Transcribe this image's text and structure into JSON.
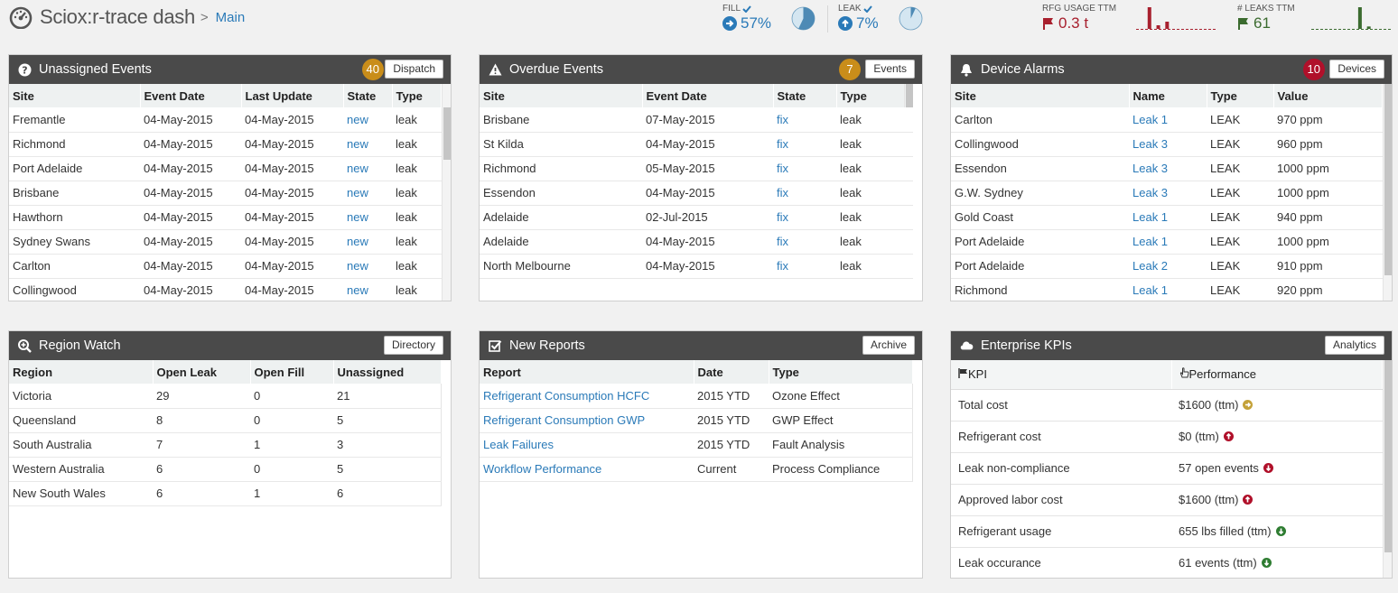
{
  "app": {
    "title": "Sciox:r-trace dash",
    "separator": ">",
    "breadcrumb": "Main"
  },
  "stats": {
    "fill": {
      "label": "FILL",
      "value": "57%",
      "fraction": 0.57
    },
    "leak": {
      "label": "LEAK",
      "value": "7%",
      "fraction": 0.07
    },
    "rfg_usage": {
      "label": "RFG USAGE TTM",
      "value": "0.3 t",
      "spark": [
        0,
        6,
        1,
        2,
        0,
        0,
        0,
        0,
        0
      ]
    },
    "leaks_ttm": {
      "label": "# LEAKS TTM",
      "value": "61",
      "spark": [
        0,
        0,
        0,
        0,
        0,
        9,
        1,
        0,
        0
      ]
    }
  },
  "colors": {
    "header": "#4a4a4a",
    "accent": "#2a7ab8",
    "gold": "#c98d1a",
    "alarm": "#b0102a",
    "ok": "#2f7d32"
  },
  "unassigned": {
    "title": "Unassigned Events",
    "badge": "40",
    "button": "Dispatch",
    "columns": [
      "Site",
      "Event Date",
      "Last Update",
      "State",
      "Type"
    ],
    "rows": [
      [
        "Fremantle",
        "04-May-2015",
        "04-May-2015",
        "new",
        "leak"
      ],
      [
        "Richmond",
        "04-May-2015",
        "04-May-2015",
        "new",
        "leak"
      ],
      [
        "Port Adelaide",
        "04-May-2015",
        "04-May-2015",
        "new",
        "leak"
      ],
      [
        "Brisbane",
        "04-May-2015",
        "04-May-2015",
        "new",
        "leak"
      ],
      [
        "Hawthorn",
        "04-May-2015",
        "04-May-2015",
        "new",
        "leak"
      ],
      [
        "Sydney Swans",
        "04-May-2015",
        "04-May-2015",
        "new",
        "leak"
      ],
      [
        "Carlton",
        "04-May-2015",
        "04-May-2015",
        "new",
        "leak"
      ],
      [
        "Collingwood",
        "04-May-2015",
        "04-May-2015",
        "new",
        "leak"
      ]
    ]
  },
  "overdue": {
    "title": "Overdue Events",
    "badge": "7",
    "button": "Events",
    "columns": [
      "Site",
      "Event Date",
      "State",
      "Type"
    ],
    "rows": [
      [
        "Brisbane",
        "07-May-2015",
        "fix",
        "leak"
      ],
      [
        "St Kilda",
        "04-May-2015",
        "fix",
        "leak"
      ],
      [
        "Richmond",
        "05-May-2015",
        "fix",
        "leak"
      ],
      [
        "Essendon",
        "04-May-2015",
        "fix",
        "leak"
      ],
      [
        "Adelaide",
        "02-Jul-2015",
        "fix",
        "leak"
      ],
      [
        "Adelaide",
        "04-May-2015",
        "fix",
        "leak"
      ],
      [
        "North Melbourne",
        "04-May-2015",
        "fix",
        "leak"
      ]
    ]
  },
  "alarms": {
    "title": "Device Alarms",
    "badge": "10",
    "button": "Devices",
    "columns": [
      "Site",
      "Name",
      "Type",
      "Value"
    ],
    "rows": [
      [
        "Carlton",
        "Leak 1",
        "LEAK",
        "970 ppm"
      ],
      [
        "Collingwood",
        "Leak 3",
        "LEAK",
        "960 ppm"
      ],
      [
        "Essendon",
        "Leak 3",
        "LEAK",
        "1000 ppm"
      ],
      [
        "G.W. Sydney",
        "Leak 3",
        "LEAK",
        "1000 ppm"
      ],
      [
        "Gold Coast",
        "Leak 1",
        "LEAK",
        "940 ppm"
      ],
      [
        "Port Adelaide",
        "Leak 1",
        "LEAK",
        "1000 ppm"
      ],
      [
        "Port Adelaide",
        "Leak 2",
        "LEAK",
        "910 ppm"
      ],
      [
        "Richmond",
        "Leak 1",
        "LEAK",
        "920 ppm"
      ]
    ]
  },
  "region": {
    "title": "Region Watch",
    "button": "Directory",
    "columns": [
      "Region",
      "Open Leak",
      "Open Fill",
      "Unassigned"
    ],
    "rows": [
      [
        "Victoria",
        "29",
        "0",
        "21"
      ],
      [
        "Queensland",
        "8",
        "0",
        "5"
      ],
      [
        "South Australia",
        "7",
        "1",
        "3"
      ],
      [
        "Western Australia",
        "6",
        "0",
        "5"
      ],
      [
        "New South Wales",
        "6",
        "1",
        "6"
      ]
    ]
  },
  "reports": {
    "title": "New Reports",
    "button": "Archive",
    "columns": [
      "Report",
      "Date",
      "Type"
    ],
    "rows": [
      [
        "Refrigerant Consumption HCFC",
        "2015 YTD",
        "Ozone Effect"
      ],
      [
        "Refrigerant Consumption GWP",
        "2015 YTD",
        "GWP Effect"
      ],
      [
        "Leak Failures",
        "2015 YTD",
        "Fault Analysis"
      ],
      [
        "Workflow Performance",
        "Current",
        "Process Compliance"
      ]
    ]
  },
  "kpis": {
    "title": "Enterprise KPIs",
    "button": "Analytics",
    "columns": [
      "KPI",
      "Performance"
    ],
    "rows": [
      {
        "name": "Total cost",
        "value": "$1600 (ttm)",
        "trend": "right",
        "color": "#c4a23a"
      },
      {
        "name": "Refrigerant cost",
        "value": "$0 (ttm)",
        "trend": "up",
        "color": "#b0102a"
      },
      {
        "name": "Leak non-compliance",
        "value": "57 open events",
        "trend": "down",
        "color": "#b0102a"
      },
      {
        "name": "Approved labor cost",
        "value": "$1600 (ttm)",
        "trend": "up",
        "color": "#b0102a"
      },
      {
        "name": "Refrigerant usage",
        "value": "655 lbs filled (ttm)",
        "trend": "down",
        "color": "#2f7d32"
      },
      {
        "name": "Leak occurance",
        "value": "61 events (ttm)",
        "trend": "down",
        "color": "#2f7d32"
      }
    ]
  }
}
